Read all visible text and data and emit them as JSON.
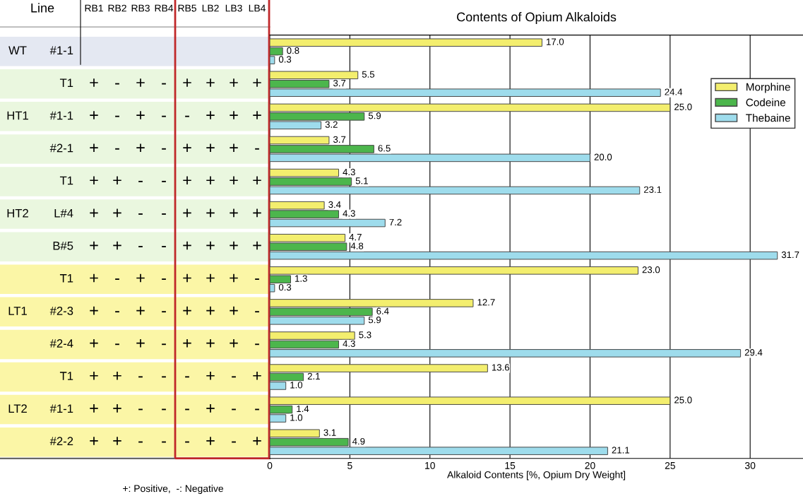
{
  "chart_data": [
    {
      "type": "other",
      "title": "Line",
      "categories": [
        "RB1",
        "RB2",
        "RB3",
        "RB4",
        "RB5",
        "LB2",
        "LB3",
        "LB4"
      ],
      "y_categories": [
        "#1-1",
        "T1",
        "#1-1",
        "#2-1",
        "T1",
        "L#4",
        "B#5",
        "T1",
        "#2-3",
        "#2-4",
        "T1",
        "#1-1",
        "#2-2"
      ],
      "y2_categories": [
        "WT",
        null,
        "HT1",
        null,
        null,
        "HT2",
        null,
        null,
        "LT1",
        null,
        null,
        "LT2",
        null
      ],
      "colors": [
        "#e4e8f2",
        "#eaf7df",
        "#eaf7df",
        "#eaf7df",
        "#eaf7df",
        "#eaf7df",
        "#eaf7df",
        "#fbf6a6",
        "#fbf6a6",
        "#fbf6a6",
        "#fbf6a6",
        "#fbf6a6",
        "#fbf6a6"
      ],
      "cell_labels": [
        [
          null,
          null,
          null,
          null,
          null,
          null,
          null,
          null
        ],
        [
          "+",
          "-",
          "+",
          "-",
          "+",
          "+",
          "+",
          "+"
        ],
        [
          "+",
          "-",
          "+",
          "-",
          "-",
          "+",
          "+",
          "+"
        ],
        [
          "+",
          "-",
          "+",
          "-",
          "+",
          "+",
          "+",
          "-"
        ],
        [
          "+",
          "+",
          "-",
          "-",
          "+",
          "+",
          "+",
          "+"
        ],
        [
          "+",
          "+",
          "-",
          "-",
          "+",
          "+",
          "+",
          "+"
        ],
        [
          "+",
          "+",
          "-",
          "-",
          "+",
          "+",
          "+",
          "+"
        ],
        [
          "+",
          "-",
          "+",
          "-",
          "+",
          "+",
          "+",
          "-"
        ],
        [
          "+",
          "-",
          "+",
          "-",
          "+",
          "+",
          "+",
          "-"
        ],
        [
          "+",
          "-",
          "+",
          "-",
          "+",
          "+",
          "+",
          "-"
        ],
        [
          "+",
          "+",
          "-",
          "-",
          "-",
          "+",
          "-",
          "+"
        ],
        [
          "+",
          "+",
          "-",
          "-",
          "-",
          "+",
          "-",
          "-"
        ],
        [
          "+",
          "+",
          "-",
          "-",
          "-",
          "+",
          "-",
          "+"
        ]
      ],
      "annotations": [
        "+: Positive,  -: Negative"
      ]
    },
    {
      "type": "bar",
      "orientation": "horizontal",
      "title": "Contents of Opium Alkaloids",
      "xlabel": "Alkaloid Contents [%, Opium Dry Weight]",
      "categories": [
        null,
        null,
        null,
        null,
        null,
        null,
        null,
        null,
        null,
        null,
        null,
        null,
        null
      ],
      "series": [
        {
          "name": "Morphine",
          "color": "#f3ee6e",
          "values": [
            17.0,
            5.5,
            25.0,
            3.7,
            4.3,
            3.4,
            4.7,
            23.0,
            12.7,
            5.3,
            13.6,
            25.0,
            3.1
          ],
          "value_labels": [
            "17.0",
            "5.5",
            "25.0",
            "3.7",
            "4.3",
            "3.4",
            "4.7",
            "23.0",
            "12.7",
            "5.3",
            "13.6",
            "25.0",
            "3.1"
          ]
        },
        {
          "name": "Codeine",
          "color": "#4cb64c",
          "values": [
            0.8,
            3.7,
            5.9,
            6.5,
            5.1,
            4.3,
            4.8,
            1.3,
            6.4,
            4.3,
            2.1,
            1.4,
            4.9
          ],
          "value_labels": [
            "0.8",
            "3.7",
            "5.9",
            "6.5",
            "5.1",
            "4.3",
            "4.8",
            "1.3",
            "6.4",
            "4.3",
            "2.1",
            "1.4",
            "4.9"
          ]
        },
        {
          "name": "Thebaine",
          "color": "#9edcec",
          "values": [
            0.3,
            24.4,
            3.2,
            20.0,
            23.1,
            7.2,
            31.7,
            0.3,
            5.9,
            29.4,
            1.0,
            1.0,
            21.1
          ],
          "value_labels": [
            "0.3",
            "24.4",
            "3.2",
            "20.0",
            "23.1",
            "7.2",
            "31.7",
            "0.3",
            "5.9",
            "29.4",
            "1.0",
            "1.0",
            "21.1"
          ]
        }
      ],
      "xlim": [
        0,
        33.3
      ],
      "xticks": [
        0,
        5,
        10,
        15,
        20,
        25,
        30
      ],
      "grid": "x",
      "legend": "top right",
      "tick_labels": "x"
    }
  ]
}
